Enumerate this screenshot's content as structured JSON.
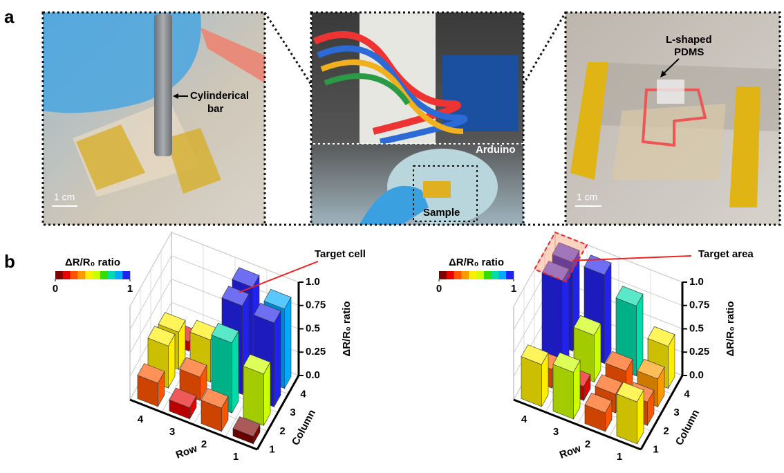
{
  "panel_a": {
    "label": "a",
    "left_photo": {
      "annotation": [
        "Cylinderical",
        "bar"
      ],
      "scale": "1 cm"
    },
    "center_photo": {
      "labels": [
        "Arduino",
        "Sample"
      ]
    },
    "right_photo": {
      "annotation": [
        "L-shaped",
        "PDMS"
      ],
      "scale": "1 cm"
    }
  },
  "panel_b_label": "b",
  "chart_data": [
    {
      "type": "bar3d",
      "row_label": "Row",
      "column_label": "Column",
      "zlabel": "ΔR/R₀ ratio",
      "rows": [
        "1",
        "2",
        "3",
        "4"
      ],
      "columns": [
        "1",
        "2",
        "3",
        "4"
      ],
      "values": [
        [
          0.08,
          0.55,
          0.9,
          0.85
        ],
        [
          0.25,
          0.75,
          0.95,
          0.95
        ],
        [
          0.12,
          0.25,
          0.45,
          0.05
        ],
        [
          0.25,
          0.45,
          0.4,
          0.1
        ]
      ],
      "zlim": [
        0,
        1
      ],
      "zticks": [
        {
          "value": 0,
          "label": "0.0"
        },
        0.25,
        0.5,
        0.75,
        {
          "value": 1,
          "label": "1.0"
        }
      ],
      "colorbar": {
        "title": "ΔR/R₀ ratio",
        "ticks": [
          0,
          1
        ],
        "colors": [
          "#800000",
          "#e60000",
          "#ff5500",
          "#ff9900",
          "#ffee00",
          "#ccff00",
          "#33dd00",
          "#00ddaa",
          "#00aaff",
          "#2222ee"
        ]
      },
      "annotation": "Target cell"
    },
    {
      "type": "bar3d",
      "row_label": "Row",
      "column_label": "Column",
      "zlabel": "ΔR/R₀ ratio",
      "rows": [
        "1",
        "2",
        "3",
        "4"
      ],
      "columns": [
        "1",
        "2",
        "3",
        "4"
      ],
      "values": [
        [
          0.45,
          0.25,
          0.3,
          0.45
        ],
        [
          0.2,
          0.2,
          0.25,
          0.75
        ],
        [
          0.5,
          0.15,
          0.5,
          0.95
        ],
        [
          0.45,
          0.2,
          0.95,
          0.95
        ]
      ],
      "zlim": [
        0,
        1
      ],
      "zticks": [
        {
          "value": 0,
          "label": "0.0"
        },
        0.25,
        0.5,
        0.75,
        {
          "value": 1,
          "label": "1.0"
        }
      ],
      "colorbar": {
        "title": "ΔR/R₀ ratio",
        "ticks": [
          0,
          1
        ],
        "colors": [
          "#800000",
          "#e60000",
          "#ff5500",
          "#ff9900",
          "#ffee00",
          "#ccff00",
          "#33dd00",
          "#00ddaa",
          "#00aaff",
          "#2222ee"
        ]
      },
      "annotation": "Target area"
    }
  ]
}
